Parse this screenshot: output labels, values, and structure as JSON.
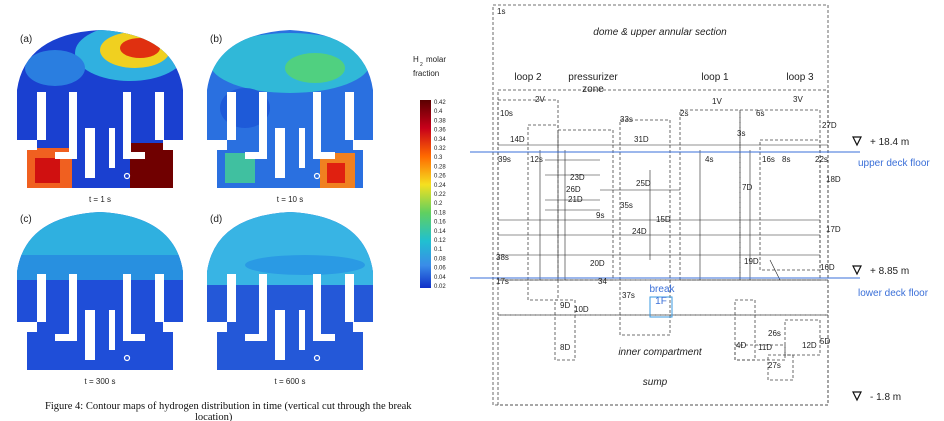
{
  "left_figure": {
    "panels": [
      {
        "letter": "(a)",
        "time": "t = 1 s"
      },
      {
        "letter": "(b)",
        "time": "t = 10 s"
      },
      {
        "letter": "(c)",
        "time": "t = 300 s"
      },
      {
        "letter": "(d)",
        "time": "t = 600 s"
      }
    ],
    "colorbar": {
      "title": {
        "symbol": "H",
        "subscript": "2",
        "words": [
          "molar",
          "fraction"
        ]
      },
      "ticks": [
        "0.42",
        "0.4",
        "0.38",
        "0.36",
        "0.34",
        "0.32",
        "0.3",
        "0.28",
        "0.26",
        "0.24",
        "0.22",
        "0.2",
        "0.18",
        "0.16",
        "0.14",
        "0.12",
        "0.1",
        "0.08",
        "0.06",
        "0.04",
        "0.02"
      ]
    },
    "caption": [
      "Figure 4: Contour maps of hydrogen distribution in time (vertical cut through the break",
      "location)"
    ]
  },
  "right_figure": {
    "regions": {
      "top_node": "1s",
      "dome": "dome & upper annular section",
      "loop2": "loop 2",
      "pressurizer": [
        "pressurizer",
        "zone"
      ],
      "loop1": "loop 1",
      "loop3": "loop 3",
      "break": "break",
      "break_node": "1F",
      "inner": "inner compartment",
      "sump": "sump"
    },
    "levels": [
      {
        "elevation": "+ 18.4 m",
        "name": "upper deck floor"
      },
      {
        "elevation": "+ 8.85 m",
        "name": "lower deck floor"
      },
      {
        "elevation": "- 1.8 m"
      }
    ],
    "nodes": [
      "10s",
      "2V",
      "1V",
      "3V",
      "2s",
      "6s",
      "33s",
      "27D",
      "31D",
      "14D",
      "12s",
      "39s",
      "4s",
      "16s",
      "8s",
      "22s",
      "18D",
      "25D",
      "23D",
      "26D",
      "21D",
      "35s",
      "15D",
      "24D",
      "9s",
      "17D",
      "19D",
      "20D",
      "17s",
      "37s",
      "34",
      "16D",
      "38s",
      "9D",
      "10D",
      "8D",
      "4D",
      "11D",
      "12D",
      "5D",
      "26s",
      "27s",
      "3s",
      "7D"
    ]
  }
}
